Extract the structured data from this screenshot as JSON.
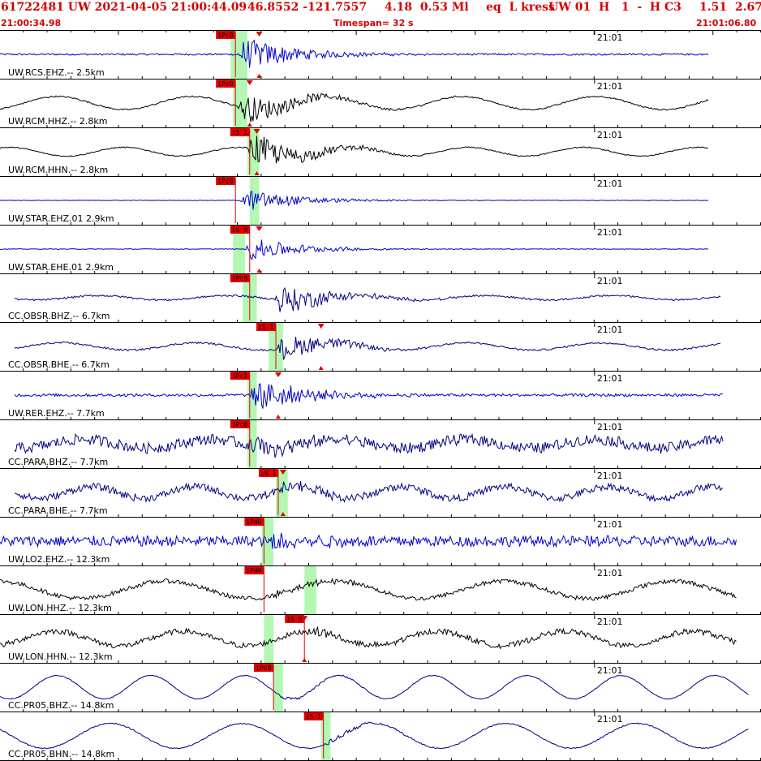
{
  "header": {
    "event_id": "61722481 UW 2021-04-05 21:00:44.09",
    "location": "46.8552 -121.7557",
    "depth_mag": "4.18  0.53 Ml",
    "event_type": "eq  L kress",
    "network_flags": "UW 01  H   1  -  H C3",
    "extra_values": "1.51  2.67"
  },
  "timebar": {
    "start": "21:00:34.98",
    "span": "Timespan=  32 s",
    "end": "21:01:06.80"
  },
  "colors": {
    "header_text": "#d40000",
    "pick_red": "#e00000",
    "window_green": "#b3f7b3",
    "blue_trace": "#0000d0",
    "black_trace": "#000000",
    "navy_trace": "#000080"
  },
  "chart_data": {
    "type": "line",
    "x_range_seconds": [
      0,
      32
    ],
    "minute_tick_label": "21:01",
    "minute_tick_time_s": 25.0,
    "traces": [
      {
        "label": "UW.RCS.EHZ.-- 2.5km",
        "color": "#0000d0",
        "pick": "iPc0",
        "pick_t": 9.9,
        "marker_t": 10.9,
        "win": [
          9.7,
          10.4
        ],
        "onset": 10.0,
        "noise": 0.05,
        "amp": 0.9,
        "lf": 0.0,
        "end": 29.8
      },
      {
        "label": "UW.RCM.HHZ.-- 2.8km",
        "color": "#000000",
        "pick": "iPc0",
        "pick_t": 9.9,
        "marker_t": 10.5,
        "win": [
          9.8,
          10.4
        ],
        "onset": 10.0,
        "noise": 0.04,
        "amp": 0.8,
        "lf": 0.45,
        "end": 29.8
      },
      {
        "label": "UW.RCM.HHN.-- 2.8km",
        "color": "#000000",
        "pick": "iS 1",
        "pick_t": 10.5,
        "marker_t": 10.8,
        "win": [
          10.4,
          10.9
        ],
        "onset": 10.4,
        "noise": 0.03,
        "amp": 0.9,
        "lf": 0.3,
        "end": 29.8
      },
      {
        "label": "UW.STAR.EHZ.01 2.9km",
        "color": "#0000d0",
        "pick": "iPc0",
        "pick_t": 9.9,
        "marker_t": null,
        "win": [
          10.5,
          10.9
        ],
        "onset": 10.1,
        "noise": 0.01,
        "amp": 0.6,
        "lf": 0.0,
        "end": 29.8
      },
      {
        "label": "UW.STAR.EHE.01 2.9km",
        "color": "#0000d0",
        "pick": "iS 0",
        "pick_t": 10.5,
        "marker_t": 10.9,
        "win": [
          9.8,
          10.3
        ],
        "onset": 10.3,
        "noise": 0.02,
        "amp": 0.6,
        "lf": 0.0,
        "end": 29.8
      },
      {
        "label": "CC.OBSR.BHZ.-- 6.7km",
        "color": "#000080",
        "pick": "iPc0",
        "pick_t": 10.5,
        "marker_t": null,
        "win": [
          10.2,
          10.8
        ],
        "onset": 11.5,
        "noise": 0.05,
        "amp": 0.8,
        "lf": 0.15,
        "end": 30.3
      },
      {
        "label": "CC.OBSR.BHE.-- 6.7km",
        "color": "#000080",
        "pick": "iS 1",
        "pick_t": 11.6,
        "marker_t": 13.5,
        "win": [
          11.3,
          11.9
        ],
        "onset": 11.6,
        "noise": 0.05,
        "amp": 0.7,
        "lf": 0.25,
        "end": 30.3
      },
      {
        "label": "UW.RER.EHZ.-- 7.7km",
        "color": "#0000d0",
        "pick": "iPc1",
        "pick_t": 10.5,
        "marker_t": 11.7,
        "win": [
          10.4,
          10.8
        ],
        "onset": 10.5,
        "noise": 0.08,
        "amp": 0.9,
        "lf": 0.0,
        "end": 30.4
      },
      {
        "label": "CC.PARA.BHZ.-- 7.7km",
        "color": "#000080",
        "pick": "iPc0",
        "pick_t": 10.5,
        "marker_t": null,
        "win": [
          10.4,
          10.8
        ],
        "onset": 10.5,
        "noise": 0.3,
        "amp": 0.5,
        "lf": 0.3,
        "end": 30.4
      },
      {
        "label": "CC.PARA.BHE.-- 7.7km",
        "color": "#000080",
        "pick": "iS 1",
        "pick_t": 11.7,
        "marker_t": 11.9,
        "win": [
          11.6,
          12.1
        ],
        "onset": 11.7,
        "noise": 0.2,
        "amp": 0.5,
        "lf": 0.4,
        "end": 30.4
      },
      {
        "label": "UW.LO2.EHZ.-- 12.3km",
        "color": "#0000d0",
        "pick": "iPd0",
        "pick_t": 11.1,
        "marker_t": null,
        "win": [
          11.0,
          11.5
        ],
        "onset": 11.2,
        "noise": 0.3,
        "amp": 0.5,
        "lf": 0.0,
        "end": 31.0
      },
      {
        "label": "UW.LON.HHZ.-- 12.3km",
        "color": "#000000",
        "pick": "iPd0",
        "pick_t": 11.1,
        "marker_t": null,
        "win": [
          12.8,
          13.3
        ],
        "onset": 11.2,
        "noise": 0.12,
        "amp": 0.2,
        "lf": 0.6,
        "end": 31.0
      },
      {
        "label": "UW.LON.HHN.-- 12.3km",
        "color": "#000000",
        "pick": "iS 0",
        "pick_t": 12.8,
        "marker_t": 12.8,
        "win": [
          11.1,
          11.5
        ],
        "onset": 12.8,
        "noise": 0.15,
        "amp": 0.3,
        "lf": 0.5,
        "end": 31.0
      },
      {
        "label": "CC.PR05.BHZ.-- 14.8km",
        "color": "#000080",
        "pick": "iPc0",
        "pick_t": 11.5,
        "marker_t": null,
        "win": [
          11.5,
          11.9
        ],
        "onset": 11.6,
        "noise": 0.02,
        "amp": 0.1,
        "lf": 0.8,
        "end": 31.5
      },
      {
        "label": "CC.PR05.BHN.-- 14.8km",
        "color": "#000080",
        "pick": "iS 1",
        "pick_t": 13.6,
        "marker_t": null,
        "win": [
          13.5,
          13.9
        ],
        "onset": 13.6,
        "noise": 0.03,
        "amp": 0.15,
        "lf": 0.85,
        "end": 31.5
      }
    ]
  }
}
